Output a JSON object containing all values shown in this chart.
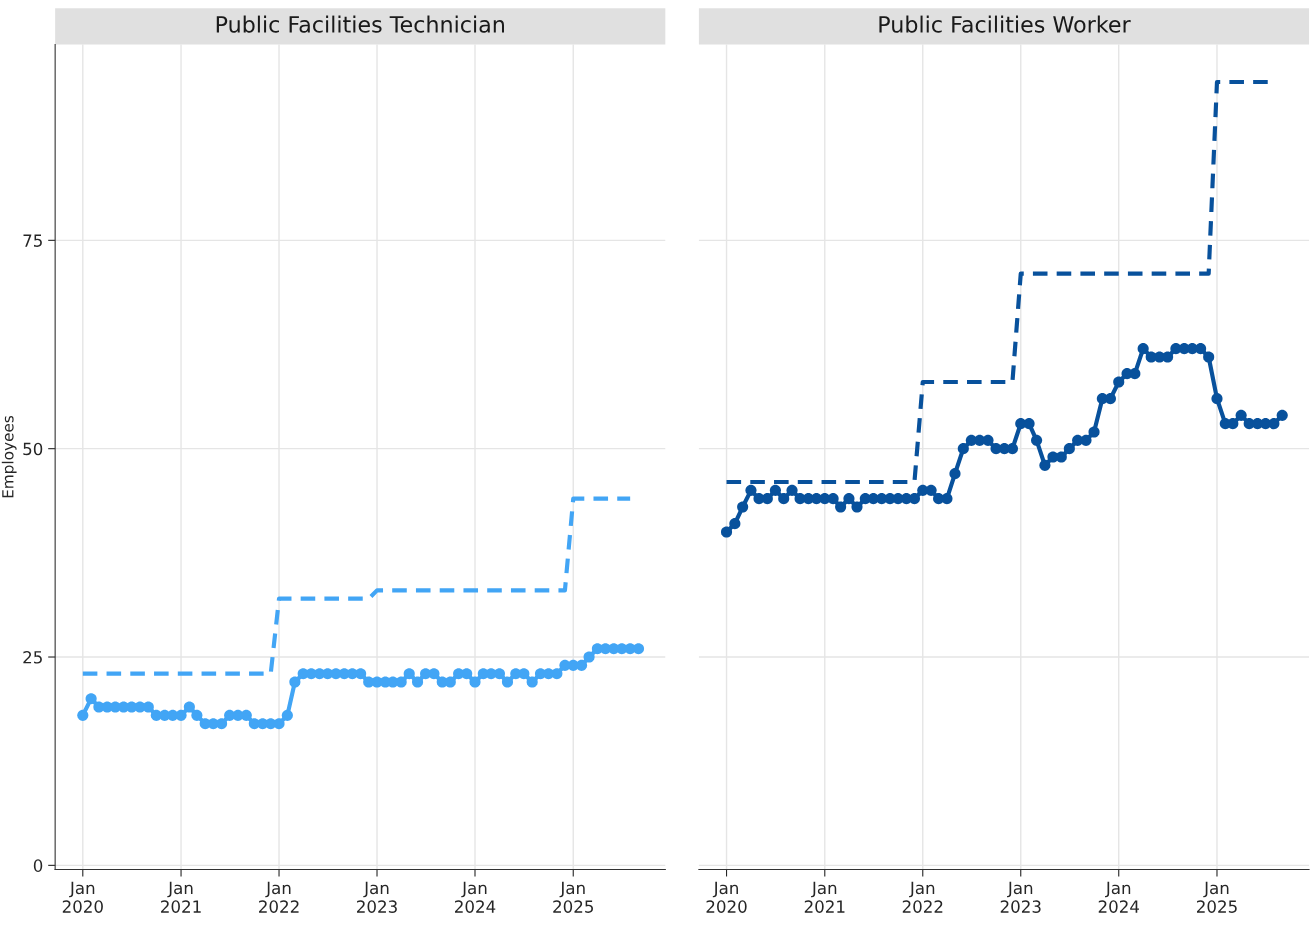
{
  "chart_data": [
    {
      "type": "line",
      "title": "Public Facilities Technician",
      "ylabel": "Employees",
      "x": [
        "2020-01",
        "2020-02",
        "2020-03",
        "2020-04",
        "2020-05",
        "2020-06",
        "2020-07",
        "2020-08",
        "2020-09",
        "2020-10",
        "2020-11",
        "2020-12",
        "2021-01",
        "2021-02",
        "2021-03",
        "2021-04",
        "2021-05",
        "2021-06",
        "2021-07",
        "2021-08",
        "2021-09",
        "2021-10",
        "2021-11",
        "2021-12",
        "2022-01",
        "2022-02",
        "2022-03",
        "2022-04",
        "2022-05",
        "2022-06",
        "2022-07",
        "2022-08",
        "2022-09",
        "2022-10",
        "2022-11",
        "2022-12",
        "2023-01",
        "2023-02",
        "2023-03",
        "2023-04",
        "2023-05",
        "2023-06",
        "2023-07",
        "2023-08",
        "2023-09",
        "2023-10",
        "2023-11",
        "2023-12",
        "2024-01",
        "2024-02",
        "2024-03",
        "2024-04",
        "2024-05",
        "2024-06",
        "2024-07",
        "2024-08",
        "2024-09",
        "2024-10",
        "2024-11",
        "2024-12",
        "2025-01",
        "2025-02",
        "2025-03",
        "2025-04",
        "2025-05",
        "2025-06",
        "2025-07",
        "2025-08",
        "2025-09"
      ],
      "xlim": [
        "2019-09-20",
        "2025-12-10"
      ],
      "xticks": [
        {
          "value": "2020-01",
          "label": "Jan\n2020"
        },
        {
          "value": "2021-01",
          "label": "Jan\n2021"
        },
        {
          "value": "2022-01",
          "label": "Jan\n2022"
        },
        {
          "value": "2023-01",
          "label": "Jan\n2023"
        },
        {
          "value": "2024-01",
          "label": "Jan\n2024"
        },
        {
          "value": "2025-01",
          "label": "Jan\n2025"
        }
      ],
      "ylim": [
        -0.5,
        98.5
      ],
      "yticks": [
        0,
        25,
        50,
        75
      ],
      "grid": true,
      "legend": false,
      "series": [
        {
          "color": "#42a5f5",
          "marker": "circle",
          "line_style": "solid",
          "values": [
            18,
            20,
            19,
            19,
            19,
            19,
            19,
            19,
            19,
            18,
            18,
            18,
            18,
            19,
            18,
            17,
            17,
            17,
            18,
            18,
            18,
            17,
            17,
            17,
            17,
            18,
            22,
            23,
            23,
            23,
            23,
            23,
            23,
            23,
            23,
            22,
            22,
            22,
            22,
            22,
            23,
            22,
            23,
            23,
            22,
            22,
            23,
            23,
            22,
            23,
            23,
            23,
            22,
            23,
            23,
            22,
            23,
            23,
            23,
            24,
            24,
            24,
            25,
            26,
            26,
            26,
            26,
            26,
            26
          ]
        },
        {
          "color": "#42a5f5",
          "marker": "none",
          "line_style": "dashed",
          "values": [
            23,
            23,
            23,
            23,
            23,
            23,
            23,
            23,
            23,
            23,
            23,
            23,
            23,
            23,
            23,
            23,
            23,
            23,
            23,
            23,
            23,
            23,
            23,
            23,
            32,
            32,
            32,
            32,
            32,
            32,
            32,
            32,
            32,
            32,
            32,
            32,
            33,
            33,
            33,
            33,
            33,
            33,
            33,
            33,
            33,
            33,
            33,
            33,
            33,
            33,
            33,
            33,
            33,
            33,
            33,
            33,
            33,
            33,
            33,
            33,
            44,
            44,
            44,
            44,
            44,
            44,
            44,
            44,
            null
          ]
        }
      ]
    },
    {
      "type": "line",
      "title": "Public Facilities Worker",
      "x": [
        "2020-01",
        "2020-02",
        "2020-03",
        "2020-04",
        "2020-05",
        "2020-06",
        "2020-07",
        "2020-08",
        "2020-09",
        "2020-10",
        "2020-11",
        "2020-12",
        "2021-01",
        "2021-02",
        "2021-03",
        "2021-04",
        "2021-05",
        "2021-06",
        "2021-07",
        "2021-08",
        "2021-09",
        "2021-10",
        "2021-11",
        "2021-12",
        "2022-01",
        "2022-02",
        "2022-03",
        "2022-04",
        "2022-05",
        "2022-06",
        "2022-07",
        "2022-08",
        "2022-09",
        "2022-10",
        "2022-11",
        "2022-12",
        "2023-01",
        "2023-02",
        "2023-03",
        "2023-04",
        "2023-05",
        "2023-06",
        "2023-07",
        "2023-08",
        "2023-09",
        "2023-10",
        "2023-11",
        "2023-12",
        "2024-01",
        "2024-02",
        "2024-03",
        "2024-04",
        "2024-05",
        "2024-06",
        "2024-07",
        "2024-08",
        "2024-09",
        "2024-10",
        "2024-11",
        "2024-12",
        "2025-01",
        "2025-02",
        "2025-03",
        "2025-04",
        "2025-05",
        "2025-06",
        "2025-07",
        "2025-08",
        "2025-09"
      ],
      "xlim": [
        "2019-09-20",
        "2025-12-10"
      ],
      "xticks": [
        {
          "value": "2020-01",
          "label": "Jan\n2020"
        },
        {
          "value": "2021-01",
          "label": "Jan\n2021"
        },
        {
          "value": "2022-01",
          "label": "Jan\n2022"
        },
        {
          "value": "2023-01",
          "label": "Jan\n2023"
        },
        {
          "value": "2024-01",
          "label": "Jan\n2024"
        },
        {
          "value": "2025-01",
          "label": "Jan\n2025"
        }
      ],
      "ylim": [
        -0.5,
        98.5
      ],
      "yticks": [
        0,
        25,
        50,
        75
      ],
      "grid": true,
      "legend": false,
      "tick_labels": "x",
      "series": [
        {
          "color": "#08519c",
          "marker": "circle",
          "line_style": "solid",
          "values": [
            40,
            41,
            43,
            45,
            44,
            44,
            45,
            44,
            45,
            44,
            44,
            44,
            44,
            44,
            43,
            44,
            43,
            44,
            44,
            44,
            44,
            44,
            44,
            44,
            45,
            45,
            44,
            44,
            47,
            50,
            51,
            51,
            51,
            50,
            50,
            50,
            53,
            53,
            51,
            48,
            49,
            49,
            50,
            51,
            51,
            52,
            56,
            56,
            58,
            59,
            59,
            62,
            61,
            61,
            61,
            62,
            62,
            62,
            62,
            61,
            56,
            53,
            53,
            54,
            53,
            53,
            53,
            53,
            54
          ]
        },
        {
          "color": "#08519c",
          "marker": "none",
          "line_style": "dashed",
          "values": [
            46,
            46,
            46,
            46,
            46,
            46,
            46,
            46,
            46,
            46,
            46,
            46,
            46,
            46,
            46,
            46,
            46,
            46,
            46,
            46,
            46,
            46,
            46,
            46,
            58,
            58,
            58,
            58,
            58,
            58,
            58,
            58,
            58,
            58,
            58,
            58,
            71,
            71,
            71,
            71,
            71,
            71,
            71,
            71,
            71,
            71,
            71,
            71,
            71,
            71,
            71,
            71,
            71,
            71,
            71,
            71,
            71,
            71,
            71,
            71,
            94,
            94,
            94,
            94,
            94,
            94,
            94,
            94,
            null
          ]
        }
      ]
    }
  ]
}
